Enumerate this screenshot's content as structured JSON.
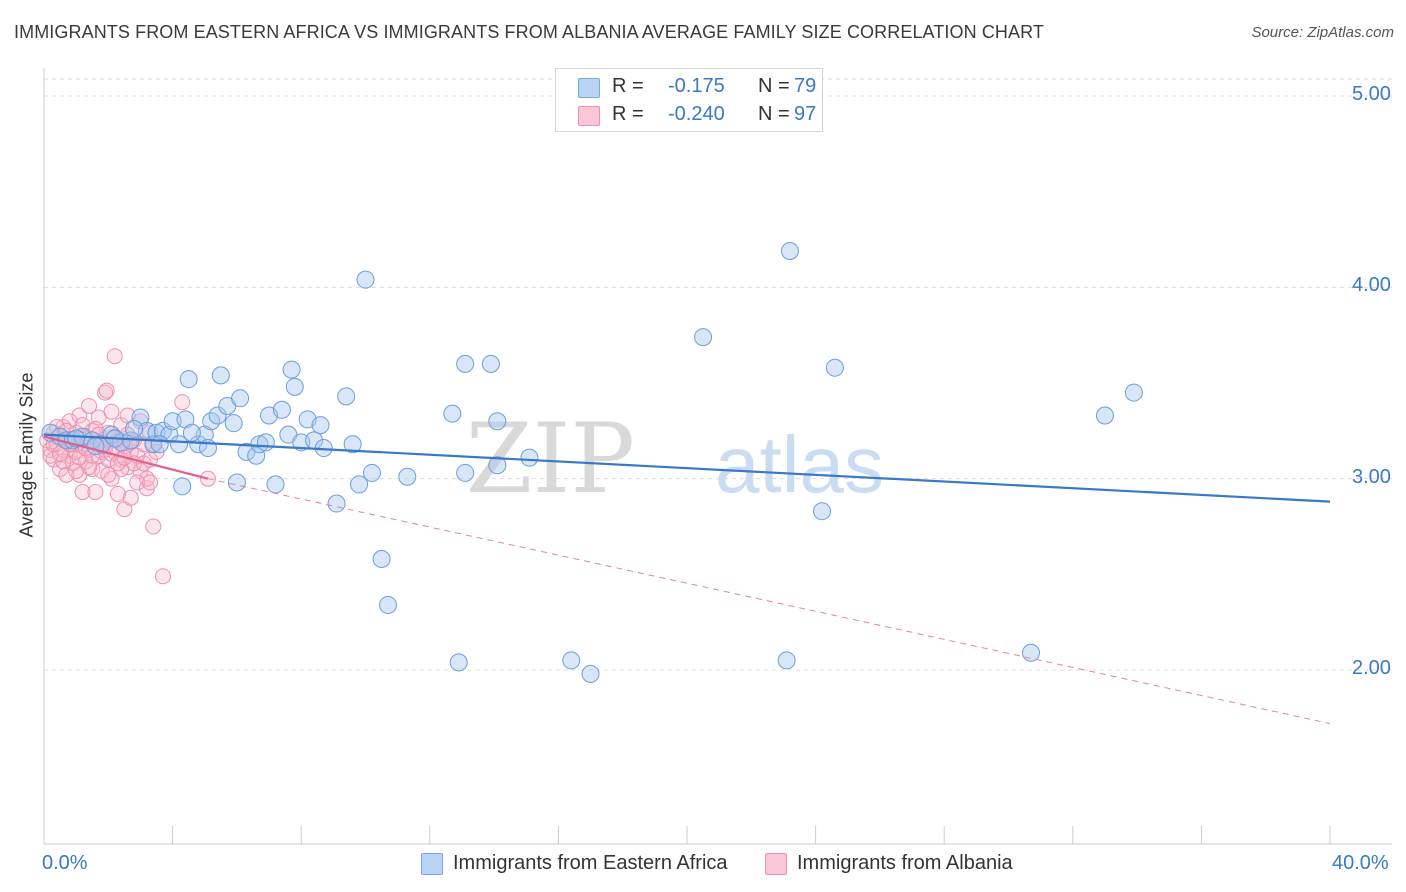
{
  "title": "IMMIGRANTS FROM EASTERN AFRICA VS IMMIGRANTS FROM ALBANIA AVERAGE FAMILY SIZE CORRELATION CHART",
  "source": "Source: ZipAtlas.com",
  "legend": {
    "r_label": "R =",
    "n_label": "N =",
    "series1": {
      "r": "-0.175",
      "n": "79"
    },
    "series2": {
      "r": "-0.240",
      "n": "97"
    }
  },
  "watermark": {
    "zip": "ZIP",
    "atlas": "atlas"
  },
  "colors": {
    "blue": "#3a78c8",
    "pink": "#e0608a",
    "blue_fill": "#a8c8f0",
    "pink_fill": "#f7b8cc"
  },
  "chart_data": {
    "type": "scatter",
    "xlabel": "",
    "ylabel": "Average Family Size",
    "xlim": [
      0,
      40
    ],
    "ylim": [
      1.0,
      5.1
    ],
    "x_tick_labels": {
      "min": "0.0%",
      "max": "40.0%"
    },
    "y_ticks": [
      {
        "value": 5.0,
        "label": "5.00"
      },
      {
        "value": 4.0,
        "label": "4.00"
      },
      {
        "value": 3.0,
        "label": "3.00"
      },
      {
        "value": 2.0,
        "label": "2.00"
      }
    ],
    "grid": "horizontal-dashed",
    "legend_position": "top-center",
    "series": [
      {
        "name": "Immigrants from Eastern Africa",
        "color": "#3a78c8",
        "trend": {
          "x": [
            0,
            40
          ],
          "y": [
            3.23,
            2.88
          ],
          "style": "solid"
        },
        "points": [
          [
            0.2,
            3.24
          ],
          [
            0.5,
            3.22
          ],
          [
            0.7,
            3.2
          ],
          [
            0.9,
            3.2
          ],
          [
            1.2,
            3.22
          ],
          [
            1.5,
            3.2
          ],
          [
            1.8,
            3.18
          ],
          [
            2.1,
            3.23
          ],
          [
            2.4,
            3.19
          ],
          [
            2.7,
            3.2
          ],
          [
            3.0,
            3.32
          ],
          [
            3.2,
            3.25
          ],
          [
            3.4,
            3.18
          ],
          [
            3.5,
            3.24
          ],
          [
            3.7,
            3.25
          ],
          [
            3.9,
            3.23
          ],
          [
            4.0,
            3.3
          ],
          [
            4.2,
            3.18
          ],
          [
            4.4,
            3.31
          ],
          [
            4.3,
            2.96
          ],
          [
            4.5,
            3.52
          ],
          [
            4.8,
            3.18
          ],
          [
            5.0,
            3.23
          ],
          [
            5.1,
            3.16
          ],
          [
            5.2,
            3.3
          ],
          [
            5.4,
            3.33
          ],
          [
            5.5,
            3.54
          ],
          [
            5.7,
            3.38
          ],
          [
            5.9,
            3.29
          ],
          [
            6.0,
            2.98
          ],
          [
            6.1,
            3.42
          ],
          [
            6.3,
            3.14
          ],
          [
            6.6,
            3.12
          ],
          [
            6.7,
            3.18
          ],
          [
            6.9,
            3.19
          ],
          [
            7.0,
            3.33
          ],
          [
            7.2,
            2.97
          ],
          [
            7.4,
            3.36
          ],
          [
            7.6,
            3.23
          ],
          [
            7.7,
            3.57
          ],
          [
            7.8,
            3.48
          ],
          [
            8.0,
            3.19
          ],
          [
            8.2,
            3.31
          ],
          [
            8.4,
            3.2
          ],
          [
            8.6,
            3.28
          ],
          [
            8.7,
            3.16
          ],
          [
            9.1,
            2.87
          ],
          [
            9.4,
            3.43
          ],
          [
            9.6,
            3.18
          ],
          [
            9.8,
            2.97
          ],
          [
            10.0,
            4.04
          ],
          [
            10.2,
            3.03
          ],
          [
            10.5,
            2.58
          ],
          [
            10.7,
            2.34
          ],
          [
            11.3,
            3.01
          ],
          [
            12.7,
            3.34
          ],
          [
            12.9,
            2.04
          ],
          [
            13.1,
            3.03
          ],
          [
            13.1,
            3.6
          ],
          [
            13.9,
            3.6
          ],
          [
            14.1,
            3.07
          ],
          [
            14.1,
            3.3
          ],
          [
            15.1,
            3.11
          ],
          [
            16.4,
            2.05
          ],
          [
            17.0,
            1.98
          ],
          [
            20.5,
            3.74
          ],
          [
            23.1,
            2.05
          ],
          [
            23.2,
            4.19
          ],
          [
            24.2,
            2.83
          ],
          [
            24.6,
            3.58
          ],
          [
            30.7,
            2.09
          ],
          [
            33.0,
            3.33
          ],
          [
            33.9,
            3.45
          ],
          [
            1.0,
            3.21
          ],
          [
            1.6,
            3.17
          ],
          [
            2.2,
            3.21
          ],
          [
            2.8,
            3.26
          ],
          [
            3.6,
            3.18
          ],
          [
            4.6,
            3.24
          ]
        ]
      },
      {
        "name": "Immigrants from Albania",
        "color": "#e0608a",
        "trend": {
          "x": [
            0,
            5.1
          ],
          "y": [
            3.22,
            3.0
          ],
          "style": "solid",
          "extended": {
            "x": [
              5.1,
              40
            ],
            "y": [
              3.0,
              1.72
            ],
            "style": "dashed"
          }
        },
        "points": [
          [
            0.1,
            3.2
          ],
          [
            0.2,
            3.15
          ],
          [
            0.3,
            3.24
          ],
          [
            0.3,
            3.1
          ],
          [
            0.4,
            3.18
          ],
          [
            0.5,
            3.22
          ],
          [
            0.5,
            3.05
          ],
          [
            0.6,
            3.27
          ],
          [
            0.6,
            3.15
          ],
          [
            0.7,
            3.2
          ],
          [
            0.7,
            3.02
          ],
          [
            0.8,
            3.12
          ],
          [
            0.8,
            3.3
          ],
          [
            0.9,
            3.18
          ],
          [
            0.9,
            3.08
          ],
          [
            1.0,
            3.24
          ],
          [
            1.0,
            3.14
          ],
          [
            1.1,
            3.33
          ],
          [
            1.1,
            3.02
          ],
          [
            1.2,
            3.17
          ],
          [
            1.2,
            2.93
          ],
          [
            1.3,
            3.22
          ],
          [
            1.3,
            3.09
          ],
          [
            1.4,
            3.38
          ],
          [
            1.4,
            3.15
          ],
          [
            1.5,
            3.25
          ],
          [
            1.5,
            3.05
          ],
          [
            1.6,
            3.19
          ],
          [
            1.6,
            2.93
          ],
          [
            1.7,
            3.12
          ],
          [
            1.7,
            3.32
          ],
          [
            1.8,
            3.2
          ],
          [
            1.8,
            3.04
          ],
          [
            1.9,
            3.15
          ],
          [
            1.9,
            3.45
          ],
          [
            2.0,
            3.24
          ],
          [
            2.0,
            3.1
          ],
          [
            2.1,
            3.0
          ],
          [
            2.1,
            3.35
          ],
          [
            2.2,
            3.14
          ],
          [
            2.2,
            3.64
          ],
          [
            2.3,
            3.2
          ],
          [
            2.3,
            2.92
          ],
          [
            2.4,
            3.1
          ],
          [
            2.4,
            3.28
          ],
          [
            2.5,
            3.17
          ],
          [
            2.5,
            2.84
          ],
          [
            2.6,
            3.23
          ],
          [
            2.6,
            3.06
          ],
          [
            2.7,
            3.14
          ],
          [
            2.7,
            2.9
          ],
          [
            2.8,
            3.2
          ],
          [
            2.9,
            3.12
          ],
          [
            3.0,
            3.04
          ],
          [
            3.1,
            3.18
          ],
          [
            3.2,
            2.95
          ],
          [
            3.3,
            3.1
          ],
          [
            3.3,
            3.24
          ],
          [
            3.4,
            2.75
          ],
          [
            3.5,
            3.14
          ],
          [
            3.7,
            2.49
          ],
          [
            4.3,
            3.4
          ],
          [
            5.1,
            3.0
          ],
          [
            0.2,
            3.12
          ],
          [
            0.4,
            3.27
          ],
          [
            0.6,
            3.09
          ],
          [
            0.8,
            3.18
          ],
          [
            1.0,
            3.04
          ],
          [
            1.2,
            3.28
          ],
          [
            1.4,
            3.06
          ],
          [
            1.6,
            3.26
          ],
          [
            1.8,
            3.14
          ],
          [
            2.0,
            3.02
          ],
          [
            2.2,
            3.22
          ],
          [
            2.4,
            3.05
          ],
          [
            2.6,
            3.33
          ],
          [
            2.8,
            3.08
          ],
          [
            3.0,
            3.3
          ],
          [
            3.2,
            3.0
          ],
          [
            3.4,
            3.18
          ],
          [
            0.3,
            3.18
          ],
          [
            0.5,
            3.13
          ],
          [
            0.7,
            3.25
          ],
          [
            0.9,
            3.21
          ],
          [
            1.1,
            3.11
          ],
          [
            1.3,
            3.16
          ],
          [
            1.5,
            3.12
          ],
          [
            1.7,
            3.23
          ],
          [
            1.9,
            3.17
          ],
          [
            2.1,
            3.13
          ],
          [
            2.3,
            3.08
          ],
          [
            2.5,
            3.11
          ],
          [
            2.7,
            3.19
          ],
          [
            2.9,
            2.98
          ],
          [
            3.1,
            3.08
          ],
          [
            3.3,
            2.98
          ],
          [
            1.95,
            3.46
          ]
        ]
      }
    ]
  }
}
